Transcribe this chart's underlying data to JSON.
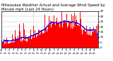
{
  "title1": "Milwaukee Weather Actual and Average Wind Speed by Minute mph (Last 24 Hours)",
  "title2": "Last 24 Hours",
  "bg_color": "#ffffff",
  "plot_bg_color": "#ffffff",
  "bar_color": "#ff0000",
  "avg_color": "#0000ff",
  "grid_color": "#c0c0c0",
  "vgrid_color": "#aaaaaa",
  "ylim": [
    0,
    35
  ],
  "yticks": [
    0,
    5,
    10,
    15,
    20,
    25,
    30,
    35
  ],
  "n_points": 1440,
  "title_fontsize": 3.8,
  "tick_fontsize": 3.0,
  "seed": 42
}
